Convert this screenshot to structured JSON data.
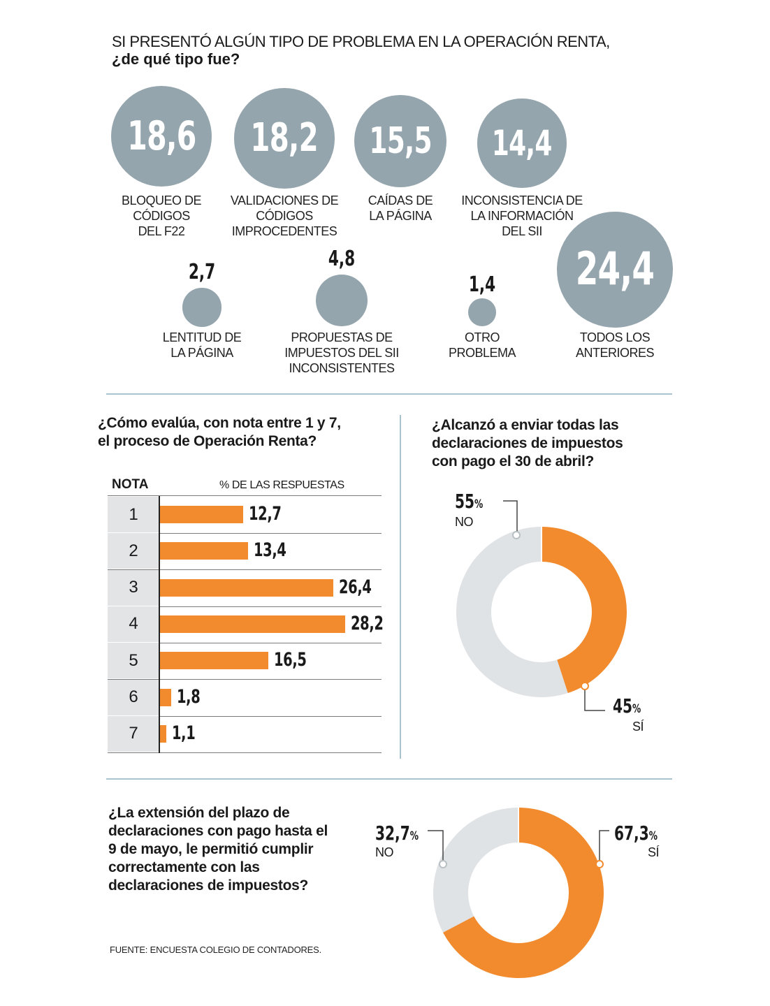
{
  "problems": {
    "title_line1": "SI PRESENTÓ ALGÚN TIPO DE PROBLEMA EN LA OPERACIÓN RENTA,",
    "title_line2": "¿de qué tipo fue?",
    "bubble_color": "#95a5ad",
    "items": [
      {
        "value": "18,6",
        "label_lines": [
          "BLOQUEO DE",
          "CÓDIGOS",
          "DEL F22"
        ]
      },
      {
        "value": "18,2",
        "label_lines": [
          "VALIDACIONES DE",
          "CÓDIGOS",
          "IMPROCEDENTES"
        ]
      },
      {
        "value": "15,5",
        "label_lines": [
          "CAÍDAS DE",
          "LA PÁGINA"
        ]
      },
      {
        "value": "14,4",
        "label_lines": [
          "INCONSISTENCIA DE",
          "LA INFORMACIÓN",
          "DEL SII"
        ]
      },
      {
        "value": "2,7",
        "label_lines": [
          "LENTITUD DE",
          "LA PÁGINA"
        ]
      },
      {
        "value": "4,8",
        "label_lines": [
          "PROPUESTAS DE",
          "IMPUESTOS DEL SII",
          "INCONSISTENTES"
        ]
      },
      {
        "value": "1,4",
        "label_lines": [
          "OTRO",
          "PROBLEMA"
        ]
      },
      {
        "value": "24,4",
        "label_lines": [
          "TODOS LOS",
          "ANTERIORES"
        ]
      }
    ]
  },
  "grades": {
    "question_line1": "¿Cómo evalúa, con nota entre 1 y 7,",
    "question_line2": "el proceso de Operación Renta?",
    "col_note": "NOTA",
    "col_pct": "% DE LAS RESPUESTAS",
    "bar_color": "#f28b2e",
    "rows": [
      {
        "nota": "1",
        "label": "12,7"
      },
      {
        "nota": "2",
        "label": "13,4"
      },
      {
        "nota": "3",
        "label": "26,4"
      },
      {
        "nota": "4",
        "label": "28,2"
      },
      {
        "nota": "5",
        "label": "16,5"
      },
      {
        "nota": "6",
        "label": "1,8"
      },
      {
        "nota": "7",
        "label": "1,1"
      }
    ]
  },
  "april": {
    "question_lines": [
      "¿Alcanzó a enviar todas las",
      "declaraciones de impuestos",
      "con pago el 30 de abril?"
    ],
    "no_value": "55",
    "no_label": "NO",
    "si_value": "45",
    "si_label": "SÍ",
    "pct_symbol": "%"
  },
  "may": {
    "question_lines": [
      "¿La extensión del plazo de",
      "declaraciones con pago hasta el",
      "9 de mayo, le permitió cumplir",
      "correctamente con las",
      "declaraciones de impuestos?"
    ],
    "no_value": "32,7",
    "no_label": "NO",
    "si_value": "67,3",
    "si_label": "SÍ",
    "pct_symbol": "%"
  },
  "source": "FUENTE: ENCUESTA COLEGIO DE CONTADORES.",
  "colors": {
    "orange": "#f28b2e",
    "grey_ring": "#dfe3e5",
    "rule": "#a9c3cf"
  },
  "chart_data": [
    {
      "type": "bubble",
      "title": "SI PRESENTÓ ALGÚN TIPO DE PROBLEMA EN LA OPERACIÓN RENTA, ¿de qué tipo fue?",
      "categories": [
        "BLOQUEO DE CÓDIGOS DEL F22",
        "VALIDACIONES DE CÓDIGOS IMPROCEDENTES",
        "CAÍDAS DE LA PÁGINA",
        "INCONSISTENCIA DE LA INFORMACIÓN DEL SII",
        "LENTITUD DE LA PÁGINA",
        "PROPUESTAS DE IMPUESTOS DEL SII INCONSISTENTES",
        "OTRO PROBLEMA",
        "TODOS LOS ANTERIORES"
      ],
      "values": [
        18.6,
        18.2,
        15.5,
        14.4,
        2.7,
        4.8,
        1.4,
        24.4
      ]
    },
    {
      "type": "bar",
      "title": "¿Cómo evalúa, con nota entre 1 y 7, el proceso de Operación Renta?",
      "xlabel": "NOTA",
      "ylabel": "% DE LAS RESPUESTAS",
      "categories": [
        "1",
        "2",
        "3",
        "4",
        "5",
        "6",
        "7"
      ],
      "values": [
        12.7,
        13.4,
        26.4,
        28.2,
        16.5,
        1.8,
        1.1
      ]
    },
    {
      "type": "pie",
      "title": "¿Alcanzó a enviar todas las declaraciones de impuestos con pago el 30 de abril?",
      "categories": [
        "SÍ",
        "NO"
      ],
      "values": [
        45,
        55
      ],
      "colors": [
        "#f28b2e",
        "#dfe3e5"
      ]
    },
    {
      "type": "pie",
      "title": "¿La extensión del plazo de declaraciones con pago hasta el 9 de mayo, le permitió cumplir correctamente con las declaraciones de impuestos?",
      "categories": [
        "SÍ",
        "NO"
      ],
      "values": [
        67.3,
        32.7
      ],
      "colors": [
        "#f28b2e",
        "#dfe3e5"
      ]
    }
  ]
}
